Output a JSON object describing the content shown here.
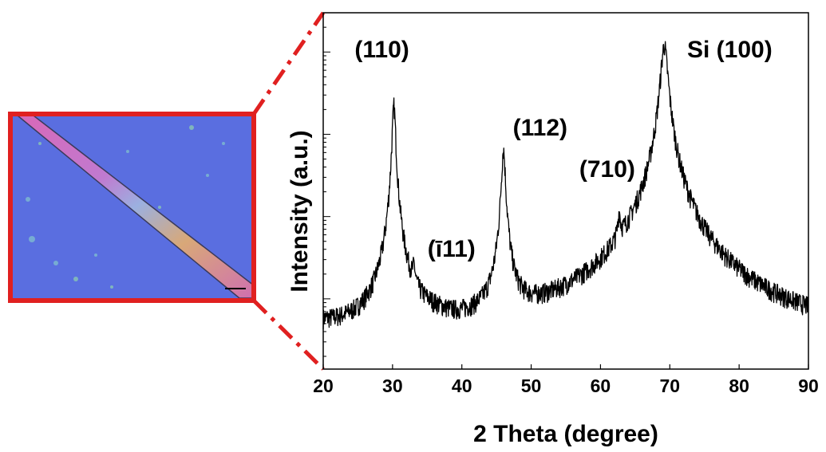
{
  "chart_data": {
    "type": "line",
    "xlabel": "2 Theta (degree)",
    "ylabel": "Intensity (a.u.)",
    "xlim": [
      20,
      90
    ],
    "x_ticks": [
      "20",
      "30",
      "40",
      "50",
      "60",
      "70",
      "80",
      "90"
    ],
    "y_scale": "log",
    "grid": false,
    "baseline": 2.6,
    "peaks": [
      {
        "x": 30.2,
        "height": 2200,
        "width": 0.22
      },
      {
        "x": 33.1,
        "height": 9,
        "width": 0.18
      },
      {
        "x": 46.0,
        "height": 650,
        "width": 0.25
      },
      {
        "x": 62.7,
        "height": 55,
        "width": 0.18
      },
      {
        "x": 69.2,
        "height": 12000,
        "width": 0.45
      }
    ],
    "annotations": [
      {
        "text": "(110)",
        "x": 30.2
      },
      {
        "text": "(ī11)",
        "x": 33.1
      },
      {
        "text": "(112)",
        "x": 46.0
      },
      {
        "text": "(710)",
        "x": 62.7
      },
      {
        "text": "Si (100)",
        "x": 69.2
      }
    ]
  },
  "inset": {
    "description_icon": "optical-micrograph-crystal-strip",
    "border_color": "#e02020",
    "background_color": "#5a6ee0",
    "zoom_line_color": "#e02020"
  }
}
